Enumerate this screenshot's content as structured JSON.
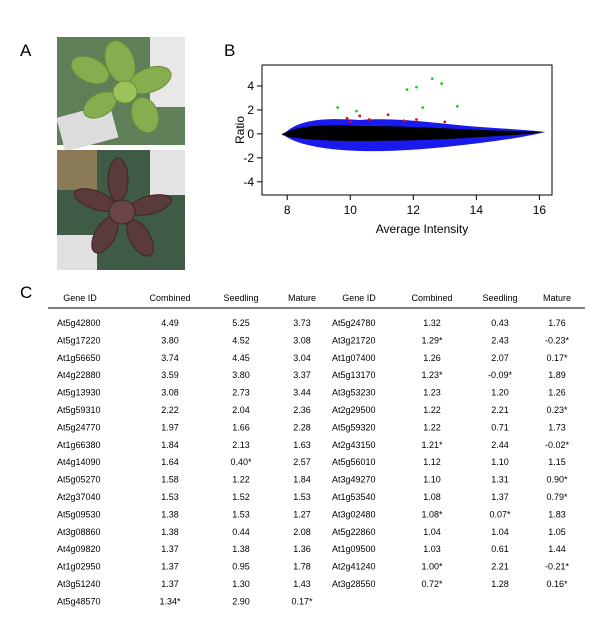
{
  "panels": {
    "a": "A",
    "b": "B",
    "c": "C"
  },
  "chart_data": {
    "type": "scatter",
    "x_label": "Average Intensity",
    "y_label": "Ratio",
    "xlim": [
      7.2,
      16.4
    ],
    "ylim": [
      -5.1,
      5.75
    ],
    "xticks": [
      8,
      10,
      12,
      14,
      16
    ],
    "yticks": [
      -4,
      -2,
      0,
      2,
      4
    ],
    "series": [
      {
        "color": "#22cc22",
        "x": [
          12.6,
          11.8,
          12.1,
          12.3,
          9.6,
          13.4,
          10.2,
          12.9
        ],
        "values": [
          4.6,
          3.7,
          3.9,
          2.2,
          2.2,
          2.3,
          1.9,
          4.2
        ]
      },
      {
        "color": "#dd1111",
        "x": [
          9.9,
          10.3,
          10.6,
          11.2,
          12.1,
          13.0,
          11.7,
          10.0
        ],
        "values": [
          1.3,
          1.5,
          1.2,
          1.6,
          1.2,
          1.0,
          1.1,
          1.0
        ]
      }
    ]
  },
  "table": {
    "header": [
      "Gene ID",
      "Combined",
      "Seedling",
      "Mature",
      "Gene ID",
      "Combined",
      "Seedling",
      "Mature"
    ],
    "rows": [
      [
        "At5g42800",
        "4.49",
        "5.25",
        "3.73",
        "At5g24780",
        "1.32",
        "0.43",
        "1.76"
      ],
      [
        "At5g17220",
        "3.80",
        "4.52",
        "3.08",
        "At3g21720",
        "1.29*",
        "2.43",
        "-0.23*"
      ],
      [
        "At1g56650",
        "3.74",
        "4.45",
        "3.04",
        "At1g07400",
        "1.26",
        "2.07",
        "0.17*"
      ],
      [
        "At4g22880",
        "3.59",
        "3.80",
        "3.37",
        "At5g13170",
        "1.23*",
        "-0.09*",
        "1.89"
      ],
      [
        "At5g13930",
        "3.08",
        "2.73",
        "3.44",
        "At3g53230",
        "1.23",
        "1.20",
        "1.26"
      ],
      [
        "At5g59310",
        "2.22",
        "2.04",
        "2.36",
        "At2g29500",
        "1.22",
        "2.21",
        "0.23*"
      ],
      [
        "At5g24770",
        "1.97",
        "1.66",
        "2.28",
        "At5g59320",
        "1.22",
        "0.71",
        "1.73"
      ],
      [
        "At1g66380",
        "1.84",
        "2.13",
        "1.63",
        "At2g43150",
        "1.21*",
        "2.44",
        "-0.02*"
      ],
      [
        "At4g14090",
        "1.64",
        "0.40*",
        "2.57",
        "At5g56010",
        "1.12",
        "1.10",
        "1.15"
      ],
      [
        "At5g05270",
        "1.58",
        "1.22",
        "1.84",
        "At3g49270",
        "1.10",
        "1.31",
        "0.90*"
      ],
      [
        "At2g37040",
        "1.53",
        "1.52",
        "1.53",
        "At1g53540",
        "1.08",
        "1.37",
        "0.79*"
      ],
      [
        "At5g09530",
        "1.38",
        "1.53",
        "1.27",
        "At3g02480",
        "1.08*",
        "0.07*",
        "1.83"
      ],
      [
        "At3g08860",
        "1.38",
        "0.44",
        "2.08",
        "At5g22860",
        "1.04",
        "1.04",
        "1.05"
      ],
      [
        "At4g09820",
        "1.37",
        "1.38",
        "1.36",
        "At1g09500",
        "1.03",
        "0.61",
        "1.44"
      ],
      [
        "At1g02950",
        "1.37",
        "0.95",
        "1.78",
        "At2g41240",
        "1.00*",
        "2.21",
        "-0.21*"
      ],
      [
        "At3g51240",
        "1.37",
        "1.30",
        "1.43",
        "At3g28550",
        "0.72*",
        "1.28",
        "0.16*"
      ],
      [
        "At5g48570",
        "1.34*",
        "2.90",
        "0.17*"
      ]
    ]
  }
}
